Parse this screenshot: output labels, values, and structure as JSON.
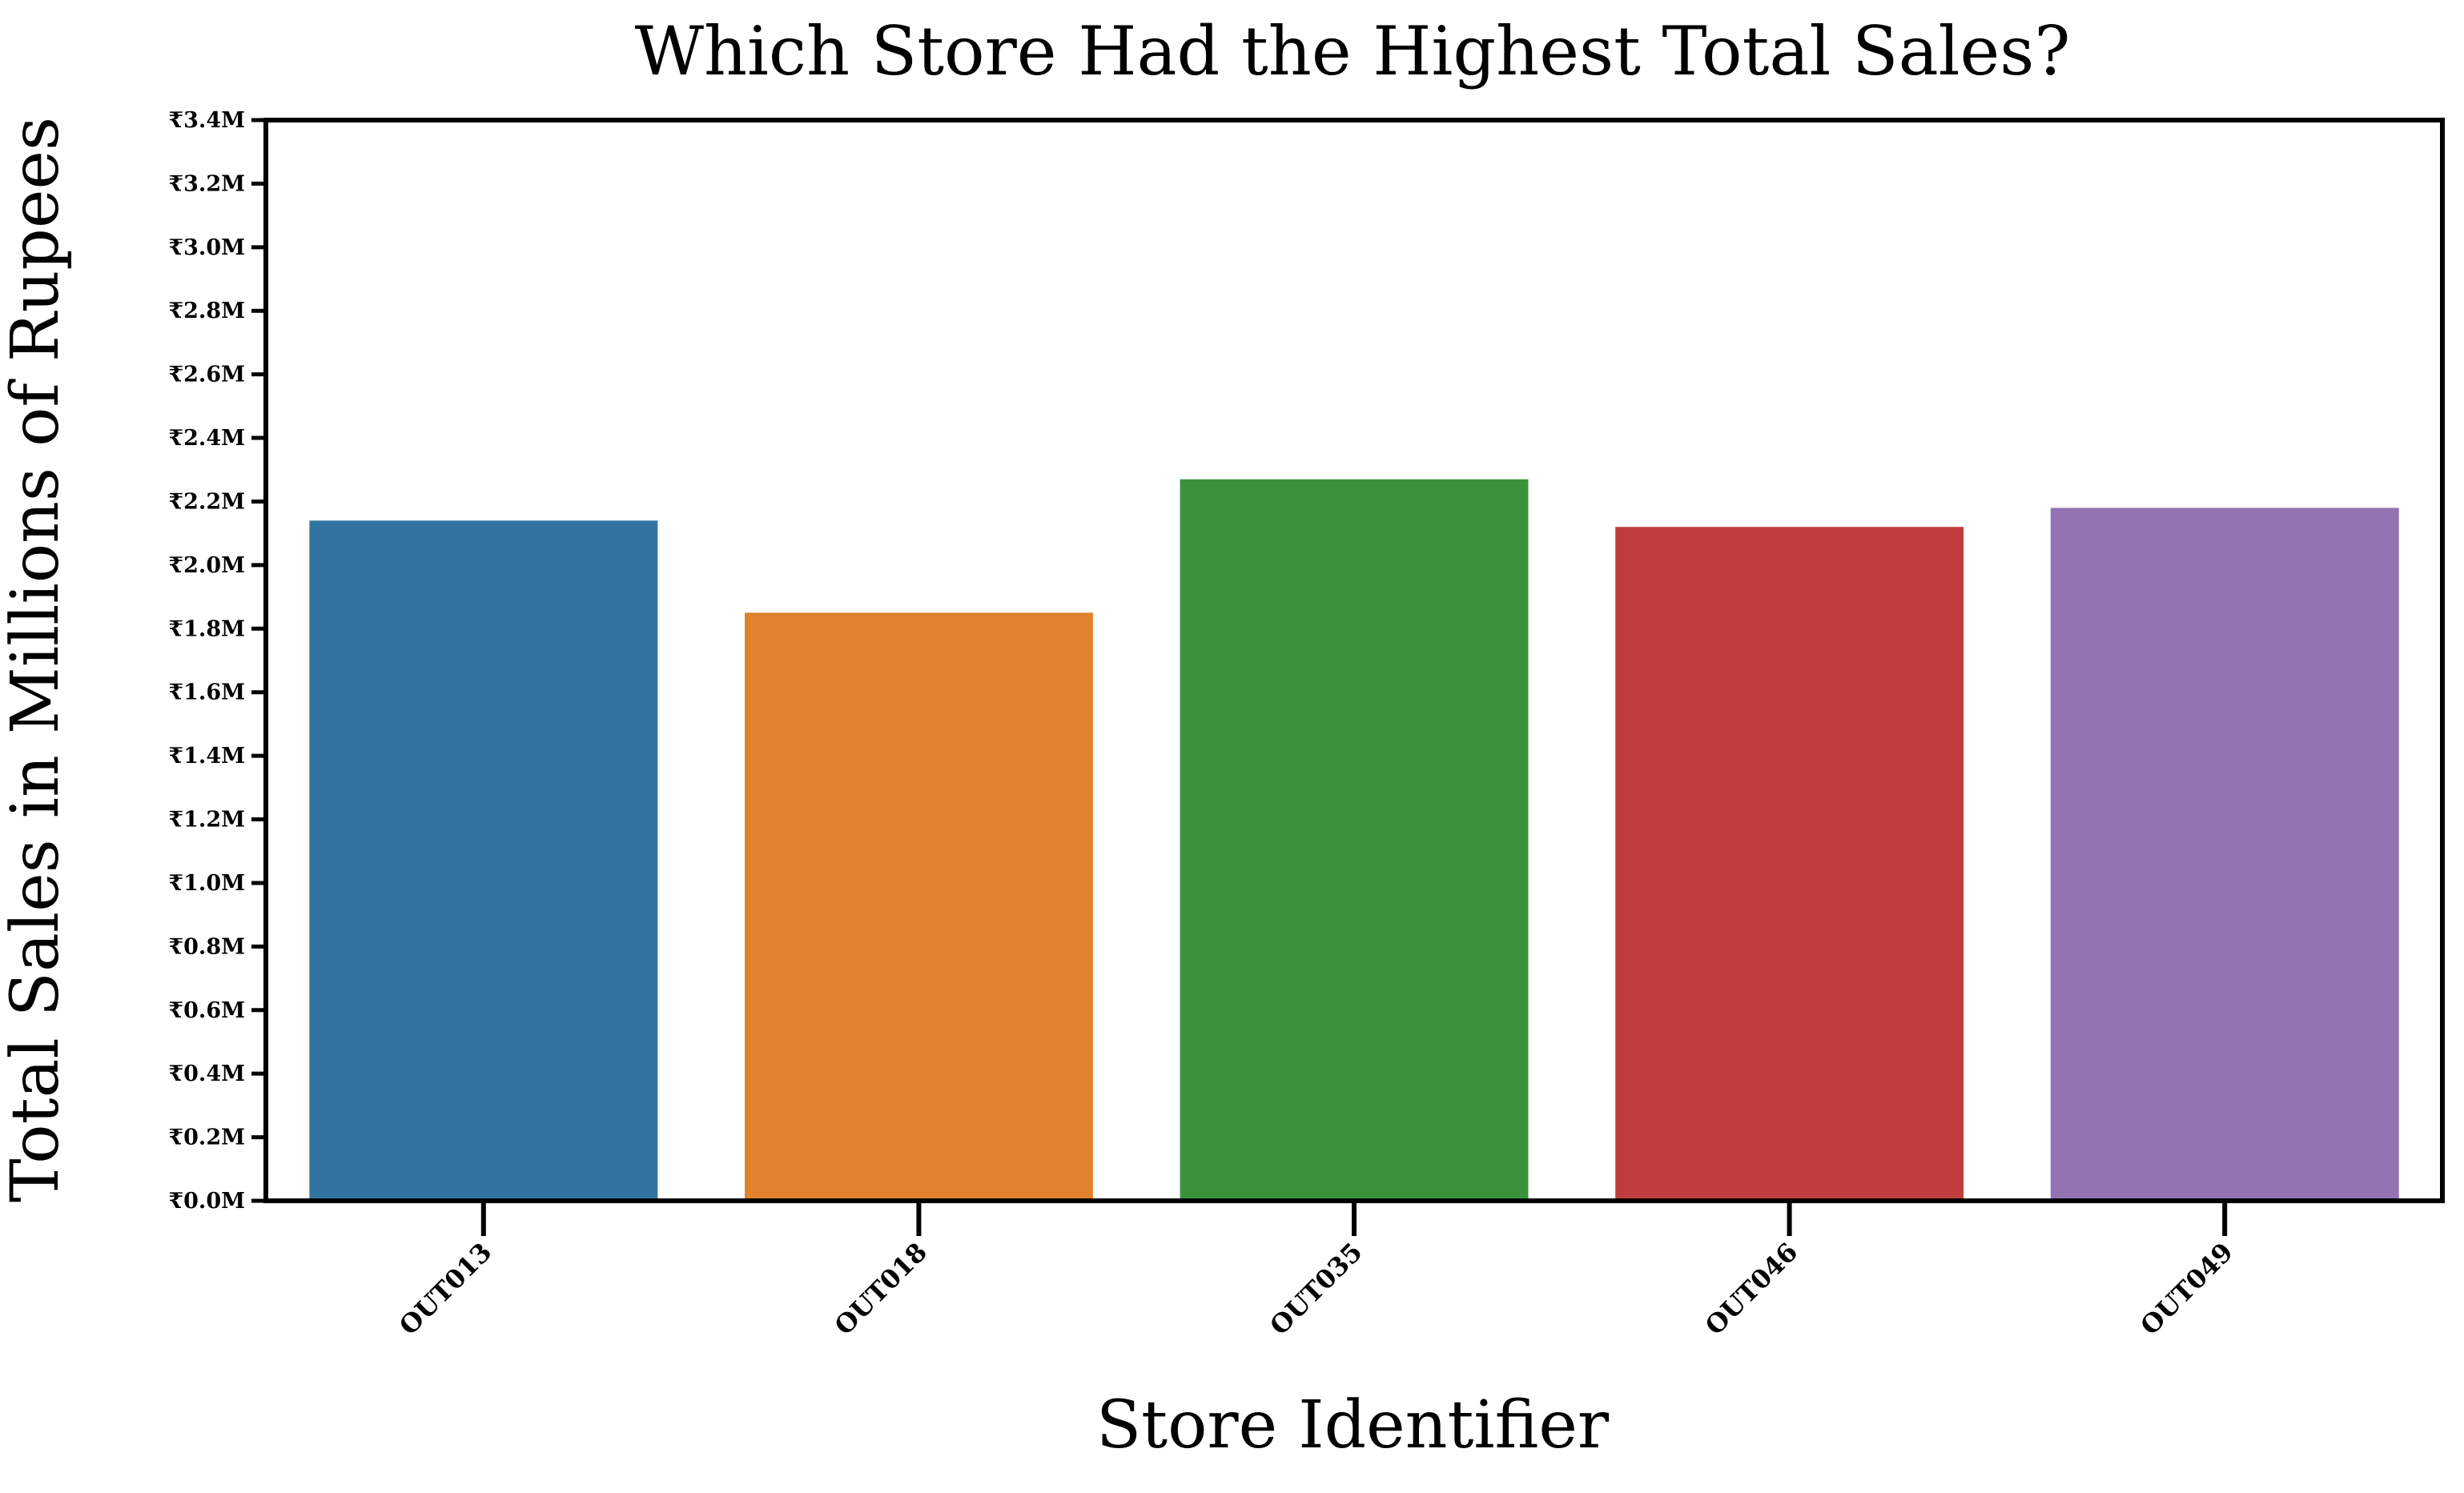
{
  "chart_data": {
    "type": "bar",
    "title": "Which Store Had the Highest Total Sales?",
    "xlabel": "Store Identifier",
    "ylabel": "Total Sales in Millions of Rupees",
    "categories": [
      "OUT013",
      "OUT018",
      "OUT035",
      "OUT046",
      "OUT049"
    ],
    "values": [
      2.14,
      1.85,
      2.27,
      2.12,
      2.18
    ],
    "value_unit": "millions of rupees",
    "ylim": [
      0,
      3.4
    ],
    "yticks": [
      0.0,
      0.2,
      0.4,
      0.6,
      0.8,
      1.0,
      1.2,
      1.4,
      1.6,
      1.8,
      2.0,
      2.2,
      2.4,
      2.6,
      2.8,
      3.0,
      3.2,
      3.4
    ],
    "ytick_labels": [
      "₹0.0M",
      "₹0.2M",
      "₹0.4M",
      "₹0.6M",
      "₹0.8M",
      "₹1.0M",
      "₹1.2M",
      "₹1.4M",
      "₹1.6M",
      "₹1.8M",
      "₹2.0M",
      "₹2.2M",
      "₹2.4M",
      "₹2.6M",
      "₹2.8M",
      "₹3.0M",
      "₹3.2M",
      "₹3.4M"
    ],
    "colors": [
      "#3274a1",
      "#e1812c",
      "#3a923a",
      "#c03d3e",
      "#9372b2"
    ],
    "grid": false,
    "legend": "none",
    "xtick_rotation_deg": 45
  }
}
